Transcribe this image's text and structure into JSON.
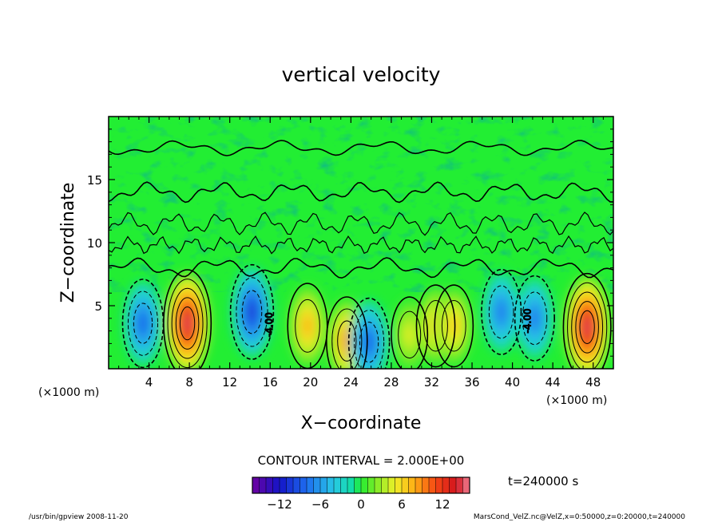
{
  "chart_data": {
    "type": "heatmap",
    "title": "vertical velocity",
    "xlabel": "X−coordinate",
    "ylabel": "Z−coordinate",
    "x_unit_left": "(×1000 m)",
    "x_unit_right": "(×1000 m)",
    "xlim": [
      0,
      50
    ],
    "ylim": [
      0,
      20
    ],
    "x_ticks": [
      4,
      8,
      12,
      16,
      20,
      24,
      28,
      32,
      36,
      40,
      44,
      48
    ],
    "y_ticks": [
      5,
      10,
      15
    ],
    "contour_interval_text": "CONTOUR INTERVAL = 2.000E+00",
    "time_text": "t=240000 s",
    "colorbar": {
      "range": [
        -16,
        16
      ],
      "tick_values": [
        -12,
        -6,
        0,
        6,
        12
      ],
      "tick_labels": [
        "−12",
        "−6",
        "0",
        "6",
        "12"
      ]
    },
    "contour_labels": [
      {
        "x": 16.2,
        "y": 3.5,
        "text": "-4.00"
      },
      {
        "x": 41.8,
        "y": 3.8,
        "text": "-4.00"
      }
    ],
    "cells": [
      {
        "x": 3.4,
        "y": 3.6,
        "value": -9
      },
      {
        "x": 7.8,
        "y": 3.6,
        "value": 15
      },
      {
        "x": 14.2,
        "y": 4.5,
        "value": -11
      },
      {
        "x": 19.7,
        "y": 3.4,
        "value": 8
      },
      {
        "x": 23.6,
        "y": 2.2,
        "value": 9
      },
      {
        "x": 25.8,
        "y": 2.1,
        "value": -9
      },
      {
        "x": 29.8,
        "y": 2.7,
        "value": 5
      },
      {
        "x": 32.4,
        "y": 3.4,
        "value": 7
      },
      {
        "x": 34.2,
        "y": 3.4,
        "value": 7
      },
      {
        "x": 38.9,
        "y": 4.5,
        "value": -8
      },
      {
        "x": 42.2,
        "y": 4.0,
        "value": -8
      },
      {
        "x": 47.4,
        "y": 3.3,
        "value": 15
      }
    ],
    "colors": {
      "background": "#22ee33",
      "frame": "#000000"
    }
  },
  "footer": {
    "left": "/usr/bin/gpview   2008-11-20",
    "right": "MarsCond_VelZ.nc@VelZ,x=0:50000,z=0:20000,t=240000"
  }
}
